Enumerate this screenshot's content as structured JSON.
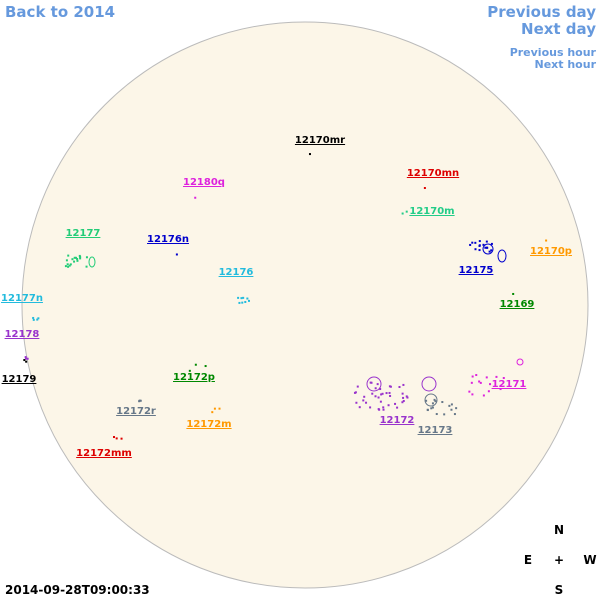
{
  "navigation": {
    "back": "Back to 2014",
    "previous_day": "Previous day",
    "next_day": "Next day",
    "previous_hour": "Previous hour",
    "next_hour": "Next hour"
  },
  "regions": [
    {
      "label": "12170mr",
      "color": "#000000"
    },
    {
      "label": "12180q",
      "color": "#dd22dd"
    },
    {
      "label": "12170mn",
      "color": "#dd0000"
    },
    {
      "label": "12170m",
      "color": "#22cc88"
    },
    {
      "label": "12177",
      "color": "#22cc77"
    },
    {
      "label": "12176n",
      "color": "#0000cc"
    },
    {
      "label": "12175",
      "color": "#0000cc"
    },
    {
      "label": "12170p",
      "color": "#ff9900"
    },
    {
      "label": "12176",
      "color": "#22bbdd"
    },
    {
      "label": "12169",
      "color": "#008800"
    },
    {
      "label": "12177n",
      "color": "#22bbdd"
    },
    {
      "label": "12178",
      "color": "#9933cc"
    },
    {
      "label": "12179",
      "color": "#000000"
    },
    {
      "label": "12172p",
      "color": "#008800"
    },
    {
      "label": "12171",
      "color": "#dd22dd"
    },
    {
      "label": "12172r",
      "color": "#667788"
    },
    {
      "label": "12172",
      "color": "#9933cc"
    },
    {
      "label": "12172m",
      "color": "#ff9900"
    },
    {
      "label": "12173",
      "color": "#667788"
    },
    {
      "label": "12172mm",
      "color": "#dd0000"
    }
  ],
  "compass": {
    "north": "N",
    "east": "E",
    "center": "+",
    "west": "W",
    "south": "S"
  },
  "timestamp": "2014-09-28T09:00:33"
}
